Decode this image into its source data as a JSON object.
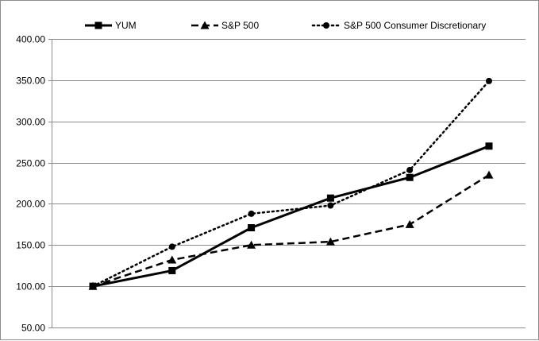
{
  "chart_data": {
    "type": "line",
    "title": "",
    "xlabel": "",
    "ylabel": "",
    "categories": [
      "",
      "",
      "",
      "",
      "",
      ""
    ],
    "ylim": [
      50,
      400
    ],
    "yticks": [
      "50.00",
      "100.00",
      "150.00",
      "200.00",
      "250.00",
      "300.00",
      "350.00",
      "400.00"
    ],
    "grid": true,
    "legend_position": "top",
    "series": [
      {
        "name": "YUM",
        "values": [
          100,
          119,
          171,
          207,
          232,
          270
        ],
        "line_style": "solid",
        "marker": "square",
        "color": "#000000"
      },
      {
        "name": "S&P 500",
        "values": [
          100,
          132,
          150,
          154,
          175,
          235
        ],
        "line_style": "dashed",
        "marker": "triangle",
        "color": "#000000"
      },
      {
        "name": "S&P 500 Consumer Discretionary",
        "values": [
          100,
          148,
          188,
          198,
          241,
          349
        ],
        "line_style": "dotted",
        "marker": "circle",
        "color": "#000000"
      }
    ]
  }
}
